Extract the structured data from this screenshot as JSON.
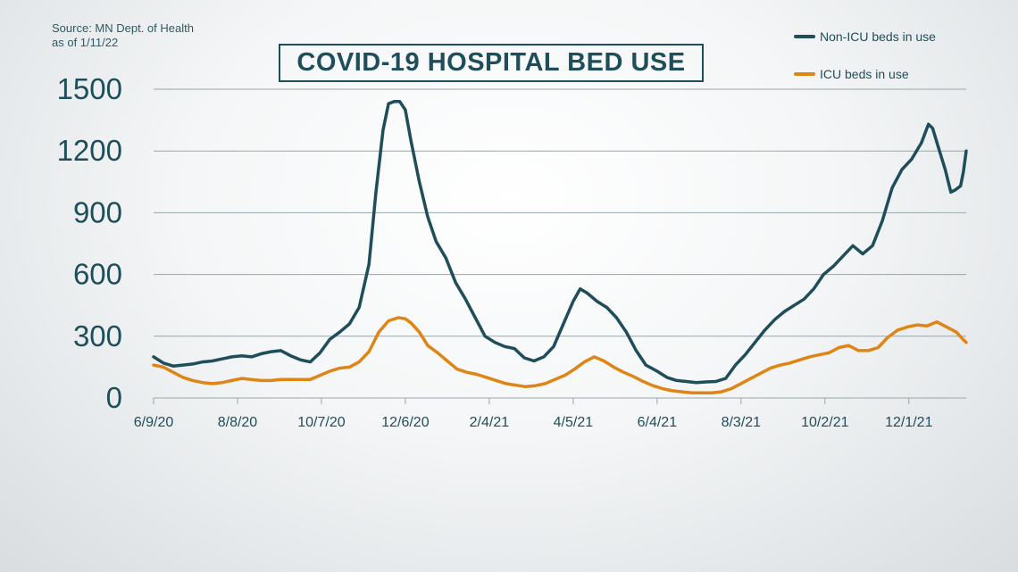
{
  "source": {
    "line1": "Source: MN Dept. of Health",
    "line2": "as of 1/11/22"
  },
  "chart_data": {
    "type": "line",
    "title": "COVID-19 HOSPITAL BED USE",
    "ylim": [
      0,
      1500
    ],
    "yticks": [
      "0",
      "300",
      "600",
      "900",
      "1200",
      "1500"
    ],
    "x_tick_labels": [
      "6/9/20",
      "8/8/20",
      "10/7/20",
      "12/6/20",
      "2/4/21",
      "4/5/21",
      "6/4/21",
      "8/3/21",
      "10/2/21",
      "12/1/21"
    ],
    "x_range": [
      "6/9/20",
      "1/11/22"
    ],
    "grid": "horizontal",
    "legend_position": "top-right",
    "series": [
      {
        "name": "Non-ICU beds in use",
        "color": "#1f4e5a",
        "points": [
          [
            "6/9/20",
            200
          ],
          [
            "6/16/20",
            170
          ],
          [
            "6/23/20",
            155
          ],
          [
            "6/30/20",
            160
          ],
          [
            "7/7/20",
            165
          ],
          [
            "7/14/20",
            175
          ],
          [
            "7/21/20",
            180
          ],
          [
            "7/28/20",
            190
          ],
          [
            "8/4/20",
            200
          ],
          [
            "8/11/20",
            205
          ],
          [
            "8/18/20",
            200
          ],
          [
            "8/25/20",
            215
          ],
          [
            "9/1/20",
            225
          ],
          [
            "9/8/20",
            230
          ],
          [
            "9/15/20",
            205
          ],
          [
            "9/22/20",
            185
          ],
          [
            "9/29/20",
            175
          ],
          [
            "10/6/20",
            220
          ],
          [
            "10/13/20",
            285
          ],
          [
            "10/20/20",
            320
          ],
          [
            "10/27/20",
            360
          ],
          [
            "11/3/20",
            440
          ],
          [
            "11/10/20",
            650
          ],
          [
            "11/15/20",
            1000
          ],
          [
            "11/20/20",
            1300
          ],
          [
            "11/24/20",
            1430
          ],
          [
            "11/28/20",
            1440
          ],
          [
            "12/2/20",
            1440
          ],
          [
            "12/6/20",
            1400
          ],
          [
            "12/10/20",
            1250
          ],
          [
            "12/16/20",
            1050
          ],
          [
            "12/22/20",
            880
          ],
          [
            "12/28/20",
            760
          ],
          [
            "1/4/21",
            680
          ],
          [
            "1/11/21",
            560
          ],
          [
            "1/18/21",
            480
          ],
          [
            "1/25/21",
            390
          ],
          [
            "2/1/21",
            300
          ],
          [
            "2/8/21",
            270
          ],
          [
            "2/15/21",
            250
          ],
          [
            "2/22/21",
            240
          ],
          [
            "3/1/21",
            195
          ],
          [
            "3/8/21",
            180
          ],
          [
            "3/15/21",
            200
          ],
          [
            "3/22/21",
            250
          ],
          [
            "3/29/21",
            360
          ],
          [
            "4/5/21",
            470
          ],
          [
            "4/10/21",
            530
          ],
          [
            "4/15/21",
            510
          ],
          [
            "4/22/21",
            470
          ],
          [
            "4/29/21",
            440
          ],
          [
            "5/6/21",
            390
          ],
          [
            "5/13/21",
            320
          ],
          [
            "5/20/21",
            230
          ],
          [
            "5/27/21",
            160
          ],
          [
            "6/4/21",
            130
          ],
          [
            "6/11/21",
            100
          ],
          [
            "6/18/21",
            85
          ],
          [
            "6/25/21",
            80
          ],
          [
            "7/2/21",
            75
          ],
          [
            "7/9/21",
            78
          ],
          [
            "7/16/21",
            80
          ],
          [
            "7/23/21",
            95
          ],
          [
            "7/30/21",
            160
          ],
          [
            "8/6/21",
            210
          ],
          [
            "8/13/21",
            270
          ],
          [
            "8/20/21",
            330
          ],
          [
            "8/27/21",
            380
          ],
          [
            "9/3/21",
            420
          ],
          [
            "9/10/21",
            450
          ],
          [
            "9/17/21",
            480
          ],
          [
            "9/24/21",
            530
          ],
          [
            "10/1/21",
            600
          ],
          [
            "10/8/21",
            640
          ],
          [
            "10/15/21",
            690
          ],
          [
            "10/22/21",
            740
          ],
          [
            "10/29/21",
            700
          ],
          [
            "11/5/21",
            740
          ],
          [
            "11/12/21",
            860
          ],
          [
            "11/19/21",
            1020
          ],
          [
            "11/26/21",
            1110
          ],
          [
            "12/3/21",
            1160
          ],
          [
            "12/10/21",
            1240
          ],
          [
            "12/15/21",
            1330
          ],
          [
            "12/18/21",
            1310
          ],
          [
            "12/22/21",
            1220
          ],
          [
            "12/27/21",
            1110
          ],
          [
            "12/31/21",
            1000
          ],
          [
            "1/3/22",
            1010
          ],
          [
            "1/7/22",
            1030
          ],
          [
            "1/9/22",
            1100
          ],
          [
            "1/11/22",
            1200
          ]
        ]
      },
      {
        "name": "ICU beds in use",
        "color": "#de8516",
        "points": [
          [
            "6/9/20",
            160
          ],
          [
            "6/16/20",
            150
          ],
          [
            "6/23/20",
            125
          ],
          [
            "6/30/20",
            100
          ],
          [
            "7/7/20",
            85
          ],
          [
            "7/14/20",
            75
          ],
          [
            "7/21/20",
            70
          ],
          [
            "7/28/20",
            75
          ],
          [
            "8/4/20",
            85
          ],
          [
            "8/11/20",
            95
          ],
          [
            "8/18/20",
            90
          ],
          [
            "8/25/20",
            85
          ],
          [
            "9/1/20",
            85
          ],
          [
            "9/8/20",
            90
          ],
          [
            "9/15/20",
            90
          ],
          [
            "9/22/20",
            90
          ],
          [
            "9/29/20",
            90
          ],
          [
            "10/6/20",
            110
          ],
          [
            "10/13/20",
            130
          ],
          [
            "10/20/20",
            145
          ],
          [
            "10/27/20",
            150
          ],
          [
            "11/3/20",
            175
          ],
          [
            "11/10/20",
            225
          ],
          [
            "11/17/20",
            320
          ],
          [
            "11/24/20",
            375
          ],
          [
            "12/1/20",
            390
          ],
          [
            "12/6/20",
            385
          ],
          [
            "12/10/20",
            365
          ],
          [
            "12/16/20",
            320
          ],
          [
            "12/22/20",
            255
          ],
          [
            "12/29/20",
            220
          ],
          [
            "1/5/21",
            180
          ],
          [
            "1/12/21",
            140
          ],
          [
            "1/19/21",
            125
          ],
          [
            "1/26/21",
            115
          ],
          [
            "2/2/21",
            100
          ],
          [
            "2/9/21",
            85
          ],
          [
            "2/16/21",
            70
          ],
          [
            "2/23/21",
            62
          ],
          [
            "3/2/21",
            55
          ],
          [
            "3/9/21",
            60
          ],
          [
            "3/16/21",
            70
          ],
          [
            "3/23/21",
            90
          ],
          [
            "3/30/21",
            110
          ],
          [
            "4/6/21",
            140
          ],
          [
            "4/13/21",
            175
          ],
          [
            "4/20/21",
            200
          ],
          [
            "4/27/21",
            180
          ],
          [
            "5/4/21",
            150
          ],
          [
            "5/11/21",
            125
          ],
          [
            "5/18/21",
            105
          ],
          [
            "5/25/21",
            80
          ],
          [
            "6/1/21",
            60
          ],
          [
            "6/8/21",
            45
          ],
          [
            "6/15/21",
            35
          ],
          [
            "6/22/21",
            30
          ],
          [
            "6/29/21",
            25
          ],
          [
            "7/6/21",
            25
          ],
          [
            "7/13/21",
            25
          ],
          [
            "7/20/21",
            30
          ],
          [
            "7/27/21",
            45
          ],
          [
            "8/3/21",
            70
          ],
          [
            "8/10/21",
            95
          ],
          [
            "8/17/21",
            120
          ],
          [
            "8/24/21",
            145
          ],
          [
            "8/31/21",
            160
          ],
          [
            "9/7/21",
            170
          ],
          [
            "9/14/21",
            185
          ],
          [
            "9/21/21",
            200
          ],
          [
            "9/28/21",
            210
          ],
          [
            "10/5/21",
            220
          ],
          [
            "10/12/21",
            245
          ],
          [
            "10/19/21",
            255
          ],
          [
            "10/26/21",
            230
          ],
          [
            "11/2/21",
            230
          ],
          [
            "11/9/21",
            245
          ],
          [
            "11/16/21",
            295
          ],
          [
            "11/23/21",
            330
          ],
          [
            "11/30/21",
            345
          ],
          [
            "12/7/21",
            355
          ],
          [
            "12/14/21",
            350
          ],
          [
            "12/21/21",
            370
          ],
          [
            "12/28/21",
            345
          ],
          [
            "1/4/22",
            320
          ],
          [
            "1/8/22",
            290
          ],
          [
            "1/11/22",
            270
          ]
        ]
      }
    ]
  }
}
